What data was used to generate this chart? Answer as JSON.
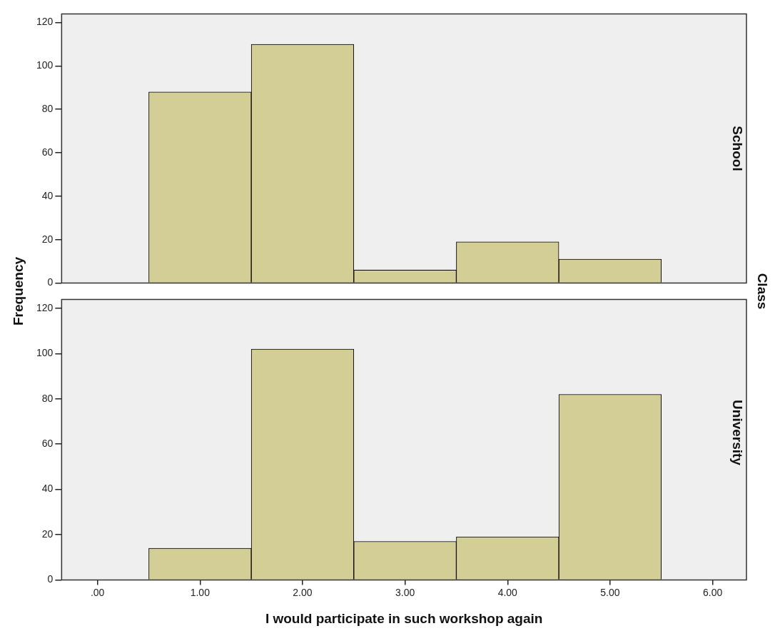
{
  "chart_data": [
    {
      "type": "histogram",
      "title": "School",
      "ylabel": "Frequency",
      "annotations": [
        "Class"
      ],
      "bins": [
        0.5,
        1.5,
        2.5,
        3.5,
        4.5,
        5.5
      ],
      "values": [
        88,
        110,
        6,
        19,
        11
      ],
      "color": "#d3cd96",
      "xlim": [
        -0.35,
        6.33
      ],
      "ylim": [
        0,
        124
      ],
      "yticks": [
        0,
        20,
        40,
        60,
        80,
        100,
        120
      ],
      "tick_labels": "y",
      "grid": false
    },
    {
      "type": "histogram",
      "title": "University",
      "xlabel": "I would participate in such workshop again",
      "bins": [
        0.5,
        1.5,
        2.5,
        3.5,
        4.5,
        5.5
      ],
      "values": [
        14,
        102,
        17,
        19,
        82
      ],
      "color": "#d3cd96",
      "xlim": [
        -0.35,
        6.33
      ],
      "xticks": [
        {
          "value": 0,
          "label": ".00"
        },
        {
          "value": 1,
          "label": "1.00"
        },
        {
          "value": 2,
          "label": "2.00"
        },
        {
          "value": 3,
          "label": "3.00"
        },
        {
          "value": 4,
          "label": "4.00"
        },
        {
          "value": 5,
          "label": "5.00"
        },
        {
          "value": 6,
          "label": "6.00"
        }
      ],
      "ylim": [
        0,
        124
      ],
      "yticks": [
        0,
        20,
        40,
        60,
        80,
        100,
        120
      ],
      "grid": false
    }
  ]
}
